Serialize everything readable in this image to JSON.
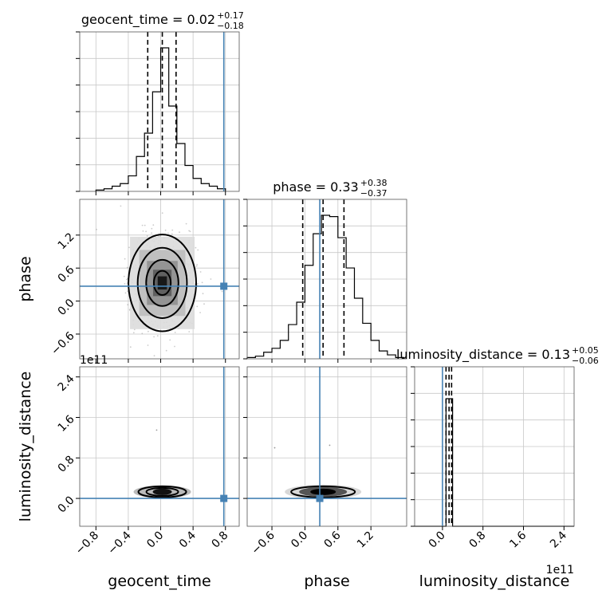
{
  "chart_data": {
    "type": "corner",
    "parameters": [
      "geocent_time",
      "phase",
      "luminosity_distance"
    ],
    "truths": {
      "geocent_time": 0.78,
      "phase": 0.27,
      "luminosity_distance": 0.0
    },
    "truth_color": "#4682b4",
    "scale_offset": "1e11",
    "titles": [
      {
        "param": "geocent_time",
        "label": "geocent_time = 0.02",
        "plus": "+0.17",
        "minus": "−0.18"
      },
      {
        "param": "phase",
        "label": "phase = 0.33",
        "plus": "+0.38",
        "minus": "−0.37"
      },
      {
        "param": "luminosity_distance",
        "label": "luminosity_distance = 0.13",
        "plus": "+0.05",
        "minus": "−0.06"
      }
    ],
    "axes": {
      "geocent_time": {
        "range": [
          -1.0,
          0.97
        ],
        "ticks": [
          -0.8,
          -0.4,
          0.0,
          0.4,
          0.8
        ],
        "tick_labels": [
          "−0.8",
          "−0.4",
          "0.0",
          "0.4",
          "0.8"
        ]
      },
      "phase": {
        "range": [
          -1.05,
          1.85
        ],
        "ticks": [
          -0.6,
          0.0,
          0.6,
          1.2
        ],
        "tick_labels": [
          "−0.6",
          "0.0",
          "0.6",
          "1.2"
        ]
      },
      "luminosity_distance": {
        "range": [
          -0.55,
          2.6
        ],
        "ticks": [
          0.0,
          0.8,
          1.6,
          2.4
        ],
        "tick_labels": [
          "0.0",
          "0.8",
          "1.6",
          "2.4"
        ]
      }
    },
    "axis_labels": {
      "x": [
        "geocent_time",
        "phase",
        "luminosity_distance"
      ],
      "y": [
        "phase",
        "luminosity_distance"
      ]
    },
    "histograms": {
      "geocent_time": {
        "edges": [
          -0.8,
          -0.7,
          -0.6,
          -0.5,
          -0.4,
          -0.3,
          -0.2,
          -0.1,
          0.0,
          0.1,
          0.2,
          0.3,
          0.4,
          0.5,
          0.6,
          0.7,
          0.8
        ],
        "counts": [
          1,
          2,
          4,
          6,
          12,
          27,
          45,
          77,
          111,
          66,
          37,
          20,
          10,
          6,
          4,
          2
        ],
        "quantiles": [
          -0.16,
          0.02,
          0.19
        ]
      },
      "phase": {
        "edges": [
          -1.05,
          -0.9,
          -0.75,
          -0.6,
          -0.45,
          -0.3,
          -0.15,
          0.0,
          0.15,
          0.3,
          0.45,
          0.6,
          0.75,
          0.9,
          1.05,
          1.2,
          1.35,
          1.5,
          1.65,
          1.8
        ],
        "counts": [
          1,
          2,
          5,
          8,
          14,
          26,
          43,
          71,
          95,
          109,
          108,
          92,
          69,
          46,
          27,
          14,
          6,
          3,
          1
        ],
        "quantiles": [
          -0.04,
          0.33,
          0.71
        ]
      },
      "luminosity_distance": {
        "edges": [
          -0.55,
          0.07,
          0.2,
          2.6
        ],
        "counts": [
          0,
          1,
          0
        ],
        "quantiles": [
          0.07,
          0.13,
          0.18
        ]
      }
    },
    "ld_hist_max_fraction": 0.8,
    "grid": true
  }
}
